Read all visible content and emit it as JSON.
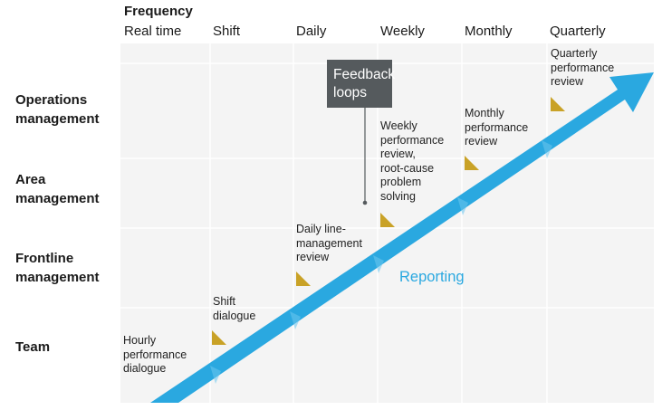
{
  "header": {
    "title": "Frequency",
    "columns": [
      "Real time",
      "Shift",
      "Daily",
      "Weekly",
      "Monthly",
      "Quarterly"
    ]
  },
  "rows": [
    "Operations management",
    "Area management",
    "Frontline management",
    "Team"
  ],
  "annotations": {
    "hourly": [
      "Hourly",
      "performance",
      "dialogue"
    ],
    "shift": [
      "Shift",
      "dialogue"
    ],
    "daily": [
      "Daily line-",
      "management",
      "review"
    ],
    "weekly": [
      "Weekly",
      "performance",
      "review,",
      "root-cause",
      "problem",
      "solving"
    ],
    "monthly": [
      "Monthly",
      "performance",
      "review"
    ],
    "quarterly": [
      "Quarterly",
      "performance",
      "review"
    ]
  },
  "feedback_box": [
    "Feedback",
    "loops"
  ],
  "arrow_label": "Reporting",
  "colors": {
    "grid_bg": "#f4f4f4",
    "grid_line": "#ffffff",
    "arrow": "#2aa8e0",
    "marker": "#c9a227",
    "feedback_box": "#555a5d"
  }
}
